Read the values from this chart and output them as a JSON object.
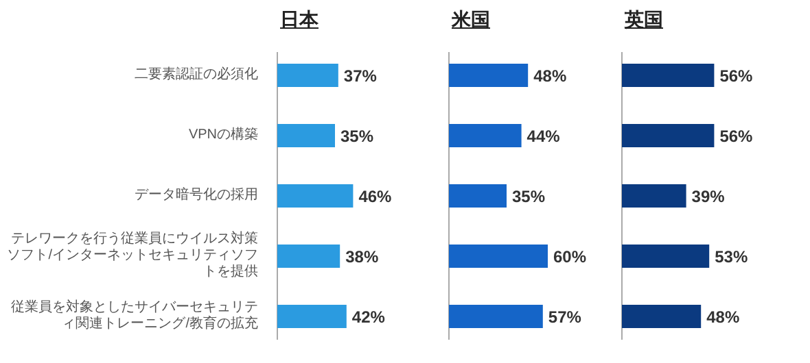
{
  "chart_data": [
    {
      "type": "bar",
      "orientation": "horizontal",
      "title": "日本",
      "categories": [
        "二要素認証の必須化",
        "VPNの構築",
        "データ暗号化の採用",
        "テレワークを行う従業員にウイルス対策ソフト/インターネットセキュリティソフトを提供",
        "従業員を対象としたサイバーセキュリティ関連トレーニング/教育の拡充"
      ],
      "values": [
        37,
        35,
        46,
        38,
        42
      ],
      "color": "#2b9be0",
      "value_labels": [
        "37%",
        "35%",
        "46%",
        "38%",
        "42%"
      ],
      "tick_labels": "y"
    },
    {
      "type": "bar",
      "orientation": "horizontal",
      "title": "米国",
      "categories": [
        null,
        null,
        null,
        null,
        null
      ],
      "values": [
        48,
        44,
        35,
        60,
        57
      ],
      "color": "#1565c8",
      "value_labels": [
        "48%",
        "44%",
        "35%",
        "60%",
        "57%"
      ],
      "tick_labels": false
    },
    {
      "type": "bar",
      "orientation": "horizontal",
      "title": "英国",
      "categories": [
        null,
        null,
        null,
        null,
        null
      ],
      "values": [
        56,
        56,
        39,
        53,
        48
      ],
      "color": "#0b3a80",
      "value_labels": [
        "56%",
        "56%",
        "39%",
        "53%",
        "48%"
      ],
      "tick_labels": false
    }
  ]
}
